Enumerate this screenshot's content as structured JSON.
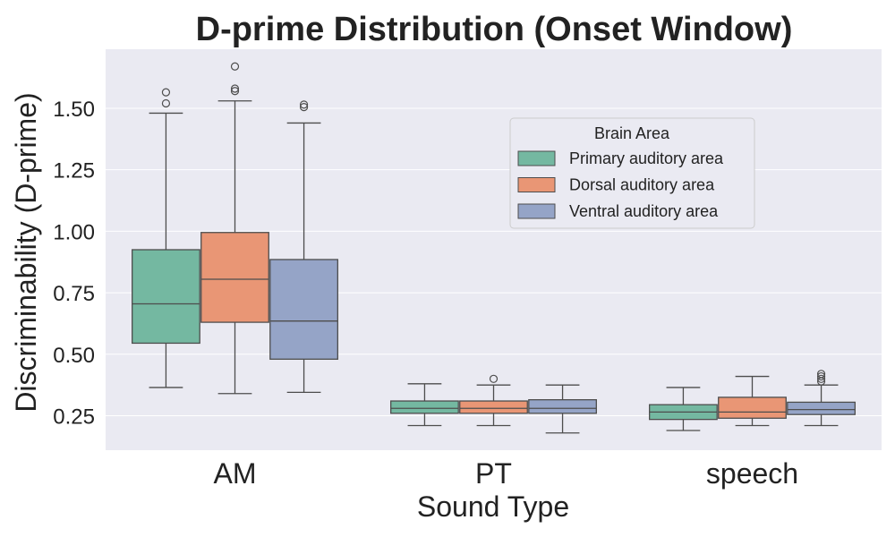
{
  "chart_data": {
    "type": "box",
    "title": "D-prime Distribution (Onset Window)",
    "xlabel": "Sound Type",
    "ylabel": "Discriminability (D-prime)",
    "categories": [
      "AM",
      "PT",
      "speech"
    ],
    "ylim": [
      0.11,
      1.74
    ],
    "yticks": [
      "0.25",
      "0.50",
      "0.75",
      "1.00",
      "1.25",
      "1.50"
    ],
    "grid": true,
    "legend": {
      "title": "Brain Area",
      "position": "upper-right"
    },
    "series": [
      {
        "name": "Primary auditory area",
        "color": "#74b8a1",
        "boxes": [
          {
            "category": "AM",
            "whisker_low": 0.365,
            "q1": 0.545,
            "median": 0.705,
            "q3": 0.925,
            "whisker_high": 1.48,
            "outliers": [
              1.52,
              1.565
            ]
          },
          {
            "category": "PT",
            "whisker_low": 0.21,
            "q1": 0.26,
            "median": 0.28,
            "q3": 0.31,
            "whisker_high": 0.38,
            "outliers": []
          },
          {
            "category": "speech",
            "whisker_low": 0.19,
            "q1": 0.235,
            "median": 0.265,
            "q3": 0.295,
            "whisker_high": 0.365,
            "outliers": []
          }
        ]
      },
      {
        "name": "Dorsal auditory area",
        "color": "#e99675",
        "boxes": [
          {
            "category": "AM",
            "whisker_low": 0.34,
            "q1": 0.63,
            "median": 0.805,
            "q3": 0.995,
            "whisker_high": 1.53,
            "outliers": [
              1.57,
              1.58,
              1.67
            ]
          },
          {
            "category": "PT",
            "whisker_low": 0.21,
            "q1": 0.26,
            "median": 0.28,
            "q3": 0.31,
            "whisker_high": 0.375,
            "outliers": [
              0.4
            ]
          },
          {
            "category": "speech",
            "whisker_low": 0.21,
            "q1": 0.24,
            "median": 0.265,
            "q3": 0.325,
            "whisker_high": 0.41,
            "outliers": []
          }
        ]
      },
      {
        "name": "Ventral auditory area",
        "color": "#95a4c7",
        "boxes": [
          {
            "category": "AM",
            "whisker_low": 0.345,
            "q1": 0.48,
            "median": 0.635,
            "q3": 0.885,
            "whisker_high": 1.44,
            "outliers": [
              1.505,
              1.515
            ]
          },
          {
            "category": "PT",
            "whisker_low": 0.18,
            "q1": 0.26,
            "median": 0.28,
            "q3": 0.315,
            "whisker_high": 0.375,
            "outliers": []
          },
          {
            "category": "speech",
            "whisker_low": 0.21,
            "q1": 0.255,
            "median": 0.275,
            "q3": 0.305,
            "whisker_high": 0.375,
            "outliers": [
              0.39,
              0.4,
              0.41,
              0.42
            ]
          }
        ]
      }
    ],
    "style": {
      "plot_background": "#eaeaf2",
      "grid_color": "#ffffff",
      "line_color": "#4d4d4d"
    }
  }
}
